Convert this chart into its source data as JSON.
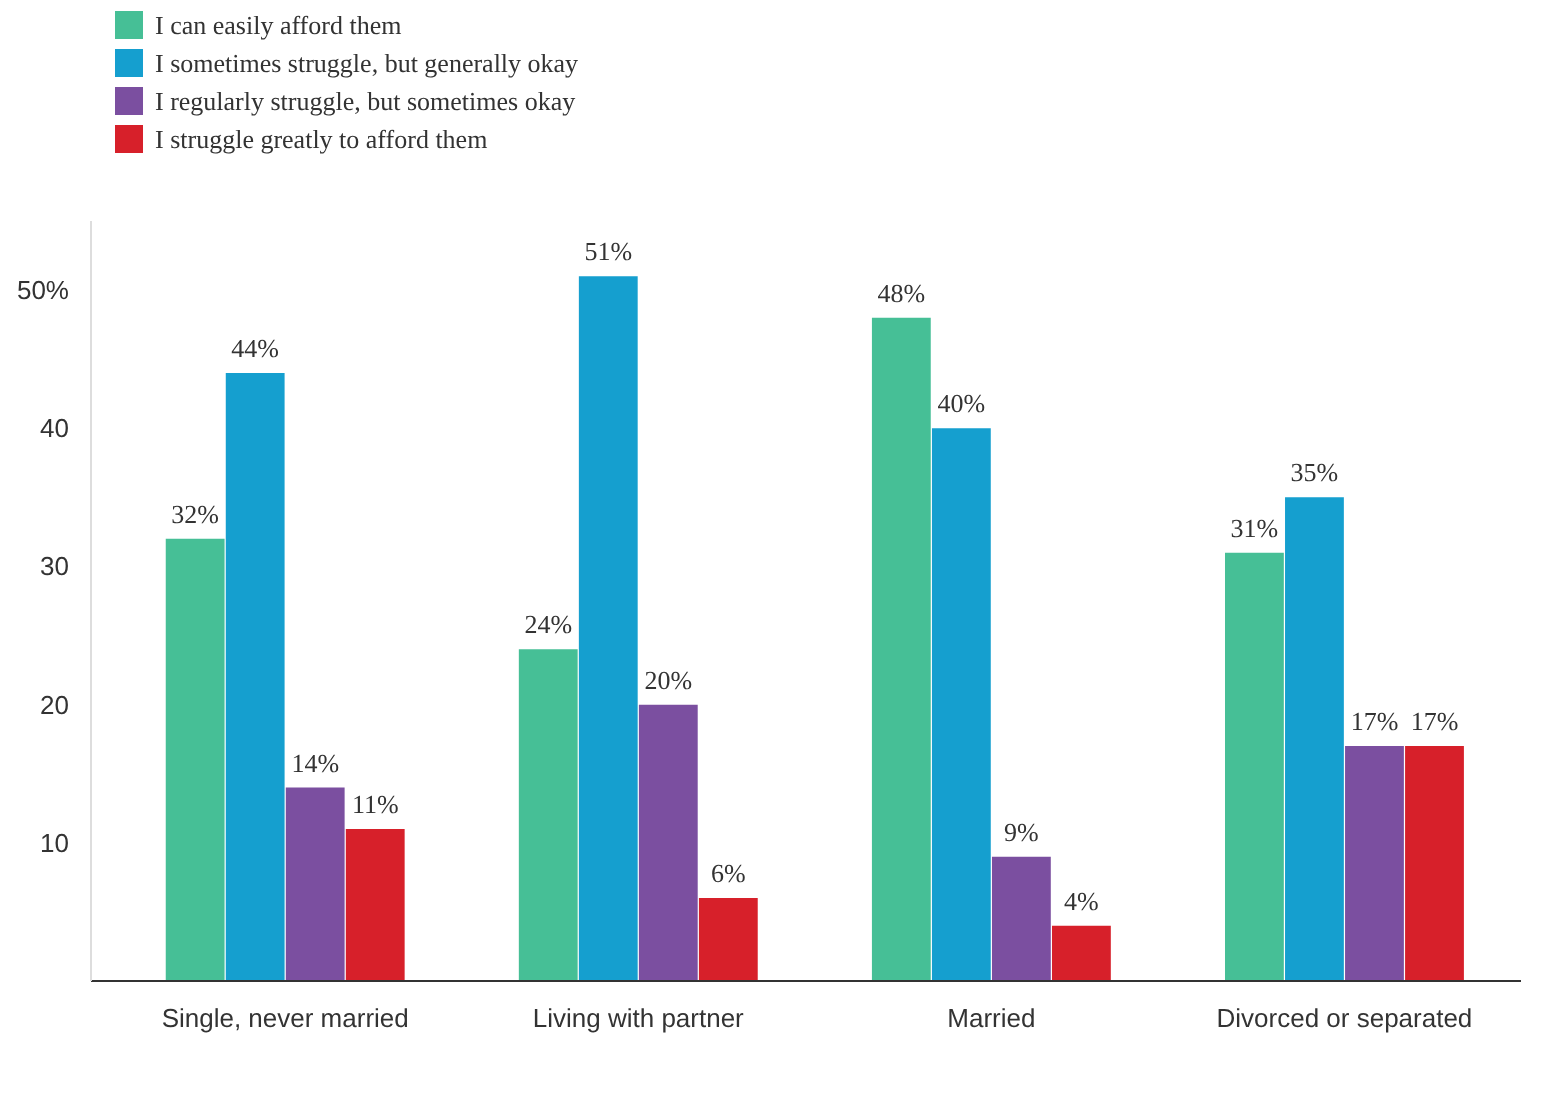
{
  "chart_data": {
    "type": "bar",
    "categories": [
      "Single, never married",
      "Living with partner",
      "Married",
      "Divorced or separated"
    ],
    "series": [
      {
        "name": "I can easily afford them",
        "color": "#46bf96",
        "values": [
          32,
          24,
          48,
          31
        ],
        "value_labels": [
          "32%",
          "24%",
          "48%",
          "31%"
        ]
      },
      {
        "name": "I sometimes struggle, but generally okay",
        "color": "#159fcf",
        "values": [
          44,
          51,
          40,
          35
        ],
        "value_labels": [
          "44%",
          "51%",
          "40%",
          "35%"
        ]
      },
      {
        "name": "I regularly struggle, but sometimes okay",
        "color": "#7b4fa0",
        "values": [
          14,
          20,
          9,
          17
        ],
        "value_labels": [
          "14%",
          "20%",
          "9%",
          "17%"
        ]
      },
      {
        "name": "I struggle greatly to afford them",
        "color": "#d7202a",
        "values": [
          11,
          6,
          4,
          17
        ],
        "value_labels": [
          "11%",
          "6%",
          "4%",
          "17%"
        ]
      }
    ],
    "ylim": [
      0,
      55
    ],
    "yticks": [
      10,
      20,
      30,
      40,
      {
        "value": 50,
        "label": "50%"
      }
    ],
    "grid": false,
    "legend": "top left"
  }
}
